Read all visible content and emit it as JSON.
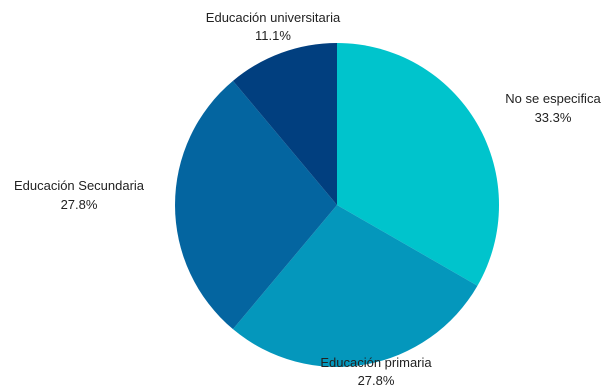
{
  "chart_data": {
    "type": "pie",
    "title": "",
    "start_angle_deg": -90,
    "direction": "clockwise",
    "slices": [
      {
        "label": "No se especifica",
        "value": 33.3,
        "value_label": "33.3%",
        "color": "#00C4CC"
      },
      {
        "label": "Educación primaria",
        "value": 27.8,
        "value_label": "27.8%",
        "color": "#0497BC"
      },
      {
        "label": "Educación Secundaria",
        "value": 27.8,
        "value_label": "27.8%",
        "color": "#0465A0"
      },
      {
        "label": "Educación universitaria",
        "value": 11.1,
        "value_label": "11.1%",
        "color": "#013F7F"
      }
    ]
  }
}
